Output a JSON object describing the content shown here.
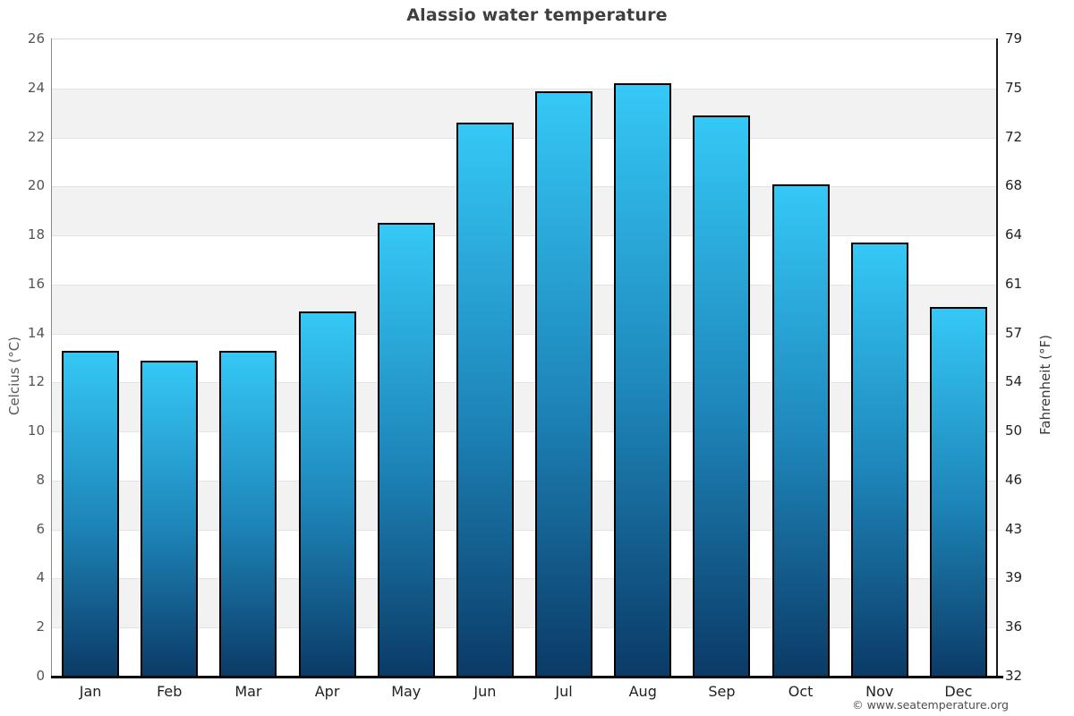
{
  "page": {
    "footer": "© www.seatemperature.org"
  },
  "chart_data": {
    "type": "bar",
    "title": "Alassio water temperature",
    "categories": [
      "Jan",
      "Feb",
      "Mar",
      "Apr",
      "May",
      "Jun",
      "Jul",
      "Aug",
      "Sep",
      "Oct",
      "Nov",
      "Dec"
    ],
    "values": [
      13.3,
      12.9,
      13.3,
      14.9,
      18.5,
      22.6,
      23.9,
      24.2,
      22.9,
      20.1,
      17.7,
      15.1
    ],
    "xlabel": "",
    "ylabel_left": "Celcius (°C)",
    "ylabel_right": "Fahrenheit (°F)",
    "ylim": [
      0,
      26
    ],
    "celsius_ticks": [
      26,
      24,
      22,
      20,
      18,
      16,
      14,
      12,
      10,
      8,
      6,
      4,
      2,
      0
    ],
    "fahrenheit_ticks": [
      79,
      75,
      72,
      68,
      64,
      61,
      57,
      54,
      50,
      46,
      43,
      39,
      36,
      32
    ],
    "grid": "horizontal-bands",
    "legend": "none",
    "colors": {
      "bar_top": "#35c8f6",
      "bar_mid": "#1e86ba",
      "bar_bottom": "#0b3a66",
      "bar_border": "#000000",
      "band_gray": "#f2f2f2",
      "band_white": "#ffffff",
      "gridline": "#e3e3e3",
      "title": "#3f3f3f"
    }
  }
}
